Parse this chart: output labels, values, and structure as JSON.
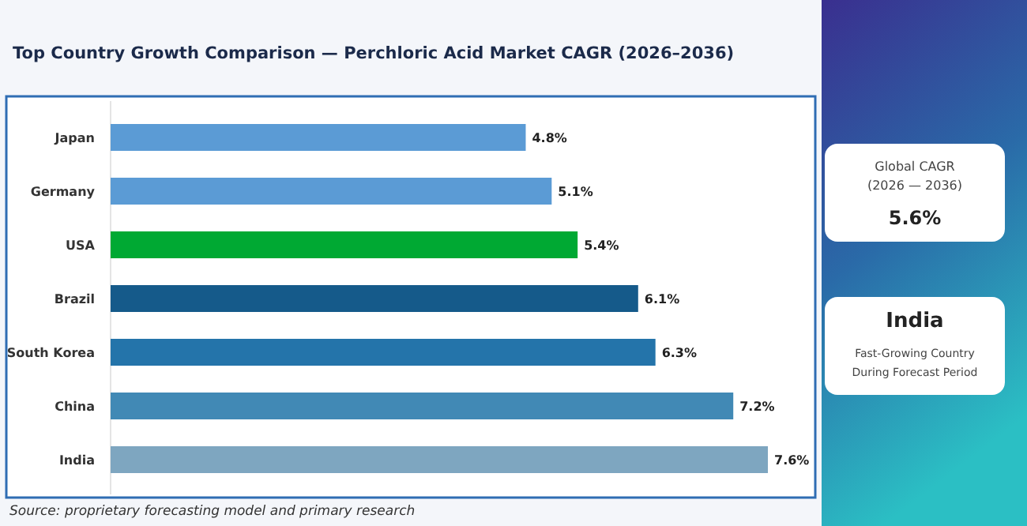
{
  "chart_data": [
    {
      "type": "bar",
      "orientation": "horizontal",
      "title": "Top Country Growth Comparison — Perchloric Acid Market CAGR (2026–2036)",
      "categories": [
        "Japan",
        "Germany",
        "USA",
        "Brazil",
        "South Korea",
        "China",
        "India"
      ],
      "values": [
        4.8,
        5.1,
        5.4,
        6.1,
        6.3,
        7.2,
        7.6
      ],
      "colors": [
        "#5b9bd5",
        "#5b9bd5",
        "#00a933",
        "#155a8a",
        "#2474aa",
        "#4189b5",
        "#7ea6c0"
      ],
      "value_labels": [
        "4.8%",
        "5.1%",
        "5.4%",
        "6.1%",
        "6.3%",
        "7.2%",
        "7.6%"
      ],
      "annotations": [
        "Source: proprietary forecasting model and primary research"
      ]
    },
    {
      "type": "other",
      "annotations": [
        "Global CAGR",
        "(2026 — 2036)",
        "5.6%",
        "India",
        "Fast-Growing Country",
        "During Forecast Period"
      ]
    }
  ]
}
